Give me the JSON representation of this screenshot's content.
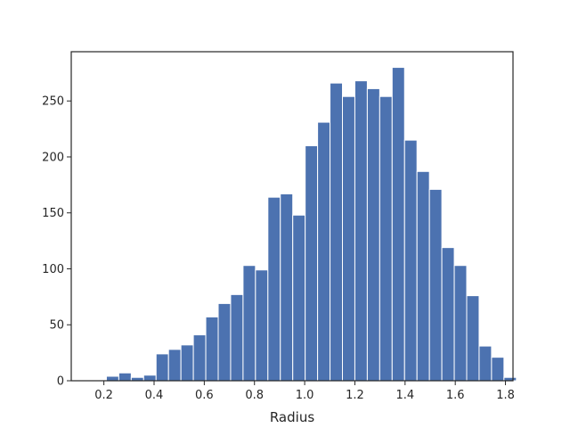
{
  "chart_data": {
    "type": "bar",
    "histogram": true,
    "title": "",
    "xlabel": "Radius",
    "ylabel": "",
    "xlim": [
      0.07,
      1.83
    ],
    "ylim": [
      0,
      294
    ],
    "xticks": [
      0.2,
      0.4,
      0.6,
      0.8,
      1.0,
      1.2,
      1.4,
      1.6,
      1.8
    ],
    "xtick_labels": [
      "0.2",
      "0.4",
      "0.6",
      "0.8",
      "1.0",
      "1.2",
      "1.4",
      "1.6",
      "1.8"
    ],
    "yticks": [
      0,
      50,
      100,
      150,
      200,
      250
    ],
    "ytick_labels": [
      "0",
      "50",
      "100",
      "150",
      "200",
      "250"
    ],
    "bar_color": "#4c72b0",
    "grid": false,
    "bin_start": 0.21,
    "bin_width": 0.0495,
    "values": [
      4,
      7,
      3,
      5,
      24,
      28,
      32,
      41,
      57,
      69,
      77,
      103,
      99,
      164,
      167,
      148,
      210,
      231,
      266,
      254,
      268,
      261,
      254,
      280,
      215,
      187,
      171,
      119,
      103,
      76,
      31,
      21,
      3
    ]
  }
}
